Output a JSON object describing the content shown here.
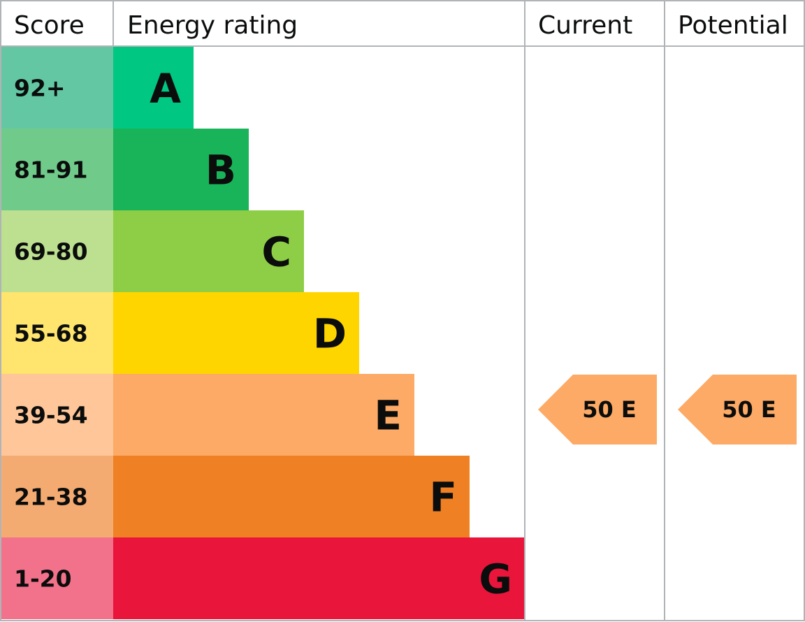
{
  "chart_data": {
    "type": "table",
    "columns": [
      "Score",
      "Energy rating",
      "Current",
      "Potential"
    ],
    "bands": [
      {
        "score": "92+",
        "letter": "A",
        "score_color": "#63c7a4",
        "band_color": "#00c781"
      },
      {
        "score": "81-91",
        "letter": "B",
        "score_color": "#70cb8b",
        "band_color": "#19b459"
      },
      {
        "score": "69-80",
        "letter": "C",
        "score_color": "#bde090",
        "band_color": "#8dce46"
      },
      {
        "score": "55-68",
        "letter": "D",
        "score_color": "#ffe46d",
        "band_color": "#ffd500"
      },
      {
        "score": "39-54",
        "letter": "E",
        "score_color": "#fec699",
        "band_color": "#fcaa65"
      },
      {
        "score": "21-38",
        "letter": "F",
        "score_color": "#f4ab72",
        "band_color": "#ef8023"
      },
      {
        "score": "1-20",
        "letter": "G",
        "score_color": "#f2728b",
        "band_color": "#e9153b"
      }
    ],
    "current": {
      "value": 50,
      "letter": "E",
      "label": "50 E",
      "color": "#fcaa65"
    },
    "potential": {
      "value": 50,
      "letter": "E",
      "label": "50 E",
      "color": "#fcaa65"
    }
  },
  "colors": {
    "grid": "#b1b4b6",
    "text": "#0b0c0c"
  }
}
